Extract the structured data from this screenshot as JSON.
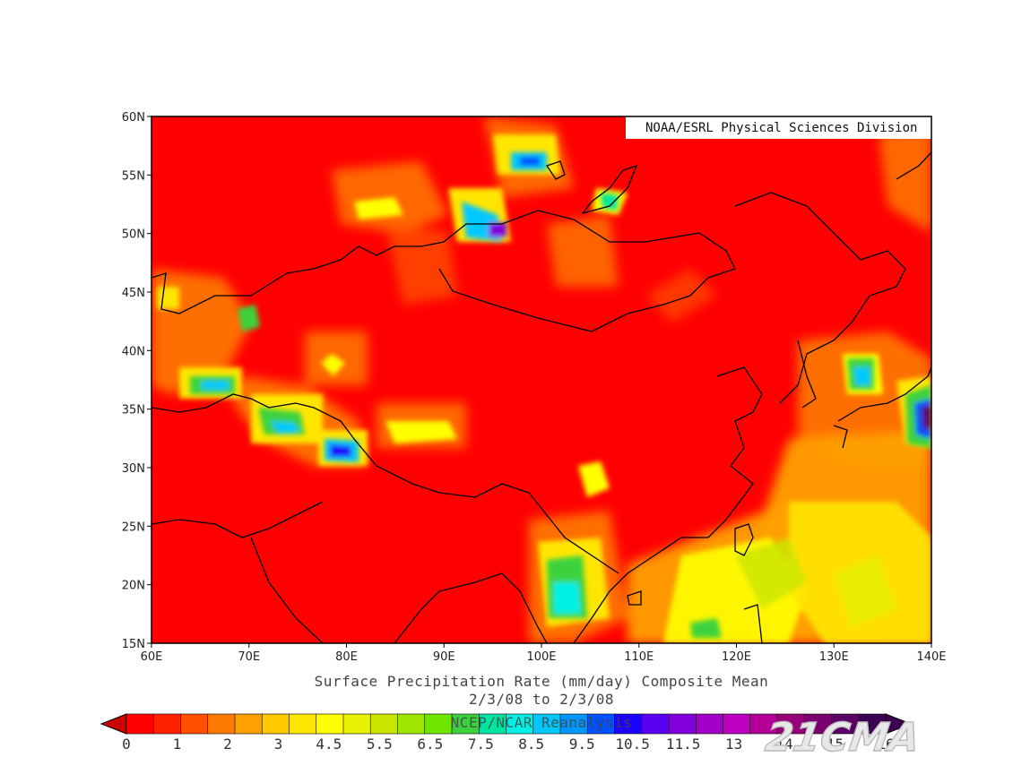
{
  "map": {
    "credit": "NOAA/ESRL Physical Sciences Division",
    "lat_labels": [
      "60N",
      "55N",
      "50N",
      "45N",
      "40N",
      "35N",
      "30N",
      "25N",
      "20N",
      "15N"
    ],
    "lon_labels": [
      "60E",
      "70E",
      "80E",
      "90E",
      "100E",
      "110E",
      "120E",
      "130E",
      "140E"
    ],
    "extent": {
      "lon": [
        60,
        140
      ],
      "lat": [
        15,
        60
      ]
    },
    "title_line1": "Surface Precipitation Rate (mm/day) Composite Mean",
    "title_line2": "2/3/08  to 2/3/08",
    "subtitle": "NCEP/NCAR Reanalysis",
    "colorbar": {
      "labels": [
        "0",
        "1",
        "2",
        "3",
        "4.5",
        "5.5",
        "6.5",
        "7.5",
        "8.5",
        "9.5",
        "10.5",
        "11.5",
        "13",
        "14",
        "15",
        "16"
      ],
      "colors": [
        "#ff0000",
        "#ff2200",
        "#ff5000",
        "#ff7a00",
        "#ffa000",
        "#ffc800",
        "#ffe600",
        "#ffff00",
        "#e6f000",
        "#c8e600",
        "#9ee600",
        "#6ee600",
        "#3cd23c",
        "#00e6a0",
        "#00f0e6",
        "#00c8ff",
        "#0096ff",
        "#0050ff",
        "#1e00ff",
        "#5a00f0",
        "#8200dc",
        "#a000c8",
        "#c000c0",
        "#b40096",
        "#960078",
        "#7a0070",
        "#5a0064",
        "#3c0050"
      ],
      "under_color": "#cc0000",
      "over_color": "#3c0050"
    },
    "precip_features": [
      {
        "lon": 95.5,
        "lat": 50.5,
        "value": 14
      },
      {
        "lon": 93.5,
        "lat": 52.0,
        "value": 9
      },
      {
        "lon": 98.0,
        "lat": 56.2,
        "value": 9
      },
      {
        "lon": 108.0,
        "lat": 52.5,
        "value": 5
      },
      {
        "lon": 67.0,
        "lat": 37.2,
        "value": 9
      },
      {
        "lon": 73.5,
        "lat": 33.5,
        "value": 9
      },
      {
        "lon": 79.5,
        "lat": 31.5,
        "value": 12
      },
      {
        "lon": 72.0,
        "lat": 35.0,
        "value": 6.5
      },
      {
        "lon": 87.0,
        "lat": 33.0,
        "value": 4.5
      },
      {
        "lon": 69.0,
        "lat": 43.0,
        "value": 6.5
      },
      {
        "lon": 132.5,
        "lat": 38.0,
        "value": 9
      },
      {
        "lon": 139.5,
        "lat": 35.0,
        "value": 13
      },
      {
        "lon": 102.5,
        "lat": 19.0,
        "value": 9
      },
      {
        "lon": 102.5,
        "lat": 29.5,
        "value": 4.5
      },
      {
        "lon": 81.0,
        "lat": 39.0,
        "value": 4
      },
      {
        "lon": 116.0,
        "lat": 16.5,
        "value": 6.5
      },
      {
        "lon": 123.0,
        "lat": 22.0,
        "value": 6
      }
    ],
    "watermark": "21CMA"
  }
}
